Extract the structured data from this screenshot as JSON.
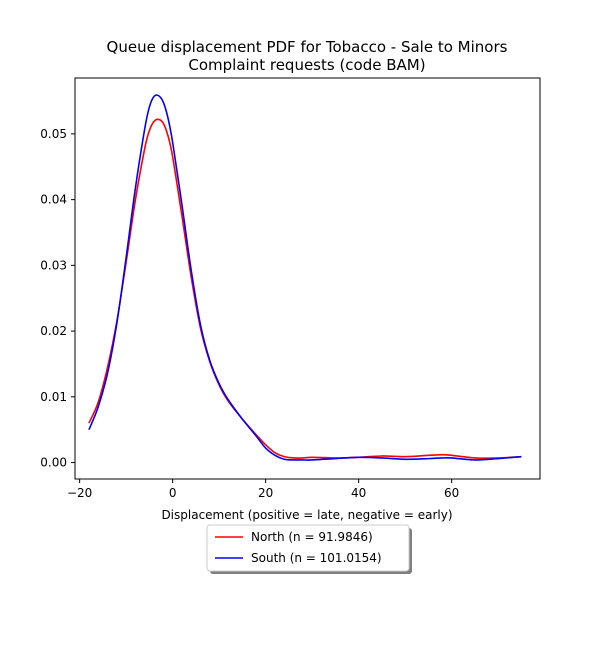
{
  "chart_data": {
    "type": "line",
    "title": "Queue displacement PDF for Tobacco - Sale to Minors\nComplaint  requests (code BAM)",
    "xlabel": "Displacement (positive = late, negative = early)",
    "ylabel": "",
    "xlim": [
      -21,
      79
    ],
    "ylim": [
      -0.0025,
      0.0585
    ],
    "xticks": [
      -20,
      0,
      20,
      40,
      60
    ],
    "xtick_labels": [
      "−20",
      "0",
      "20",
      "40",
      "60"
    ],
    "yticks": [
      0.0,
      0.01,
      0.02,
      0.03,
      0.04,
      0.05
    ],
    "ytick_labels": [
      "0.00",
      "0.01",
      "0.02",
      "0.03",
      "0.04",
      "0.05"
    ],
    "grid": false,
    "legend_position": "below",
    "series": [
      {
        "name": "North (n = 91.9846)",
        "color": "#ff0000",
        "x": [
          -18,
          -16,
          -14,
          -12,
          -10,
          -8,
          -6,
          -5,
          -4,
          -3,
          -2,
          -1,
          0,
          2,
          4,
          6,
          8,
          10,
          12,
          15,
          18,
          20,
          22,
          24,
          26,
          28,
          30,
          35,
          40,
          45,
          50,
          55,
          58,
          60,
          65,
          70,
          75
        ],
        "y": [
          0.006,
          0.0092,
          0.0145,
          0.0215,
          0.0305,
          0.04,
          0.0478,
          0.0505,
          0.0519,
          0.0522,
          0.0516,
          0.0497,
          0.0465,
          0.0375,
          0.0282,
          0.0204,
          0.0153,
          0.0118,
          0.0093,
          0.0066,
          0.0042,
          0.0027,
          0.0015,
          0.0009,
          0.0007,
          0.0007,
          0.0008,
          0.0007,
          0.0008,
          0.001,
          0.0009,
          0.0011,
          0.0012,
          0.0011,
          0.0007,
          0.0007,
          0.0009
        ]
      },
      {
        "name": "South (n = 101.0154)",
        "color": "#0000ff",
        "x": [
          -18,
          -16,
          -14,
          -12,
          -10,
          -8,
          -6,
          -5,
          -4,
          -3,
          -2,
          -1,
          0,
          2,
          4,
          6,
          8,
          10,
          12,
          15,
          18,
          20,
          22,
          24,
          26,
          28,
          30,
          35,
          40,
          45,
          50,
          55,
          58,
          60,
          65,
          70,
          75
        ],
        "y": [
          0.005,
          0.0085,
          0.0136,
          0.0212,
          0.0312,
          0.0418,
          0.0508,
          0.0541,
          0.0557,
          0.0558,
          0.0548,
          0.0524,
          0.0487,
          0.0392,
          0.0292,
          0.0209,
          0.0155,
          0.012,
          0.0095,
          0.0066,
          0.004,
          0.0022,
          0.0011,
          0.0005,
          0.0004,
          0.0004,
          0.0004,
          0.0006,
          0.0008,
          0.0007,
          0.0005,
          0.0006,
          0.0007,
          0.0007,
          0.0004,
          0.0006,
          0.0009
        ]
      }
    ]
  }
}
